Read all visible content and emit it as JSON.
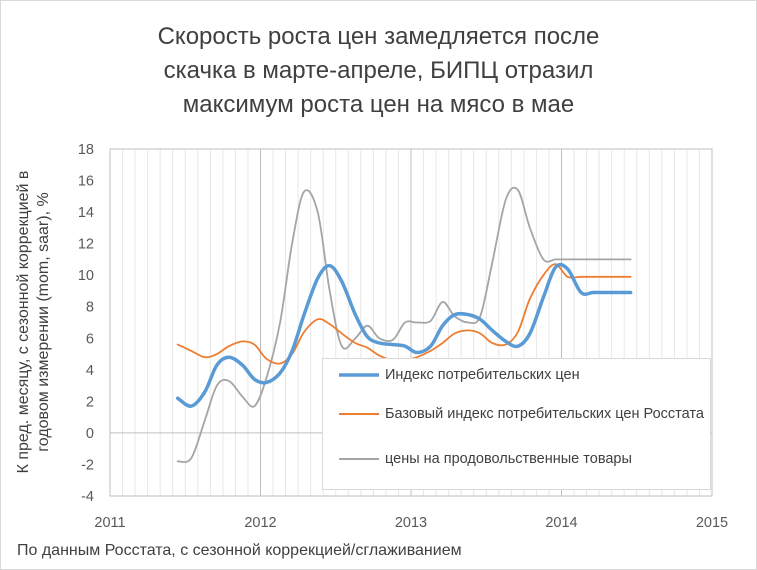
{
  "title_lines": [
    "Скорость роста цен замедляется после",
    "скачка в марте-апреле, БИПЦ отразил",
    "максимум роста цен на мясо в мае"
  ],
  "ylabel_lines": [
    "К пред. месяцу, с сезонной коррекцией в",
    "годовом измерении (mom, saar), %"
  ],
  "footnote": "По данным Росстата, с сезонной коррекцией/сглаживанием",
  "chart_data": {
    "type": "line",
    "title": "Скорость роста цен замедляется после скачка в марте-апреле, БИПЦ отразил максимум роста цен на мясо в мае",
    "xlabel": "",
    "ylabel": "К пред. месяцу, с сезонной коррекцией в годовом измерении (mom, saar), %",
    "xlim": [
      2011,
      2015
    ],
    "ylim": [
      -4,
      18
    ],
    "x_ticks": [
      "2011",
      "2012",
      "2013",
      "2014",
      "2015"
    ],
    "y_ticks": [
      "-4",
      "-2",
      "0",
      "2",
      "4",
      "6",
      "8",
      "10",
      "12",
      "14",
      "16",
      "18"
    ],
    "grid": "vertical gridlines",
    "legend": "bottom-right inside plot",
    "series": [
      {
        "name": "Индекс потребительских цен",
        "color": "#5b9bd5",
        "x": [
          2011.45,
          2011.54,
          2011.63,
          2011.71,
          2011.79,
          2011.88,
          2011.96,
          2012.04,
          2012.13,
          2012.21,
          2012.29,
          2012.38,
          2012.46,
          2012.54,
          2012.63,
          2012.71,
          2012.79,
          2012.88,
          2012.96,
          2013.04,
          2013.13,
          2013.21,
          2013.29,
          2013.38,
          2013.46,
          2013.54,
          2013.63,
          2013.71,
          2013.79,
          2013.88,
          2013.96,
          2014.04,
          2014.13,
          2014.21,
          2014.29,
          2014.38,
          2014.46
        ],
        "y": [
          2.2,
          1.7,
          2.6,
          4.3,
          4.8,
          4.3,
          3.4,
          3.2,
          3.8,
          5.2,
          7.5,
          9.8,
          10.6,
          9.6,
          7.5,
          6.1,
          5.7,
          5.6,
          5.5,
          5.1,
          5.5,
          6.8,
          7.5,
          7.5,
          7.2,
          6.5,
          5.8,
          5.5,
          6.3,
          8.6,
          10.5,
          10.4,
          8.9,
          8.9,
          8.9,
          8.9,
          8.9
        ]
      },
      {
        "name": "Базовый индекс потребительских цен Росстата",
        "color": "#ed7d31",
        "x": [
          2011.45,
          2011.54,
          2011.63,
          2011.71,
          2011.79,
          2011.88,
          2011.96,
          2012.04,
          2012.13,
          2012.21,
          2012.29,
          2012.38,
          2012.46,
          2012.54,
          2012.63,
          2012.71,
          2012.79,
          2012.88,
          2012.96,
          2013.04,
          2013.13,
          2013.21,
          2013.29,
          2013.38,
          2013.46,
          2013.54,
          2013.63,
          2013.71,
          2013.79,
          2013.88,
          2013.96,
          2014.04,
          2014.13,
          2014.21,
          2014.29,
          2014.38,
          2014.46
        ],
        "y": [
          5.6,
          5.2,
          4.8,
          5.0,
          5.5,
          5.8,
          5.6,
          4.7,
          4.4,
          5.0,
          6.4,
          7.2,
          6.9,
          6.3,
          5.7,
          5.4,
          4.9,
          4.6,
          4.6,
          4.8,
          5.2,
          5.7,
          6.3,
          6.5,
          6.3,
          5.7,
          5.6,
          6.4,
          8.5,
          10.0,
          10.7,
          9.9,
          9.9,
          9.9,
          9.9,
          9.9,
          9.9
        ]
      },
      {
        "name": "цены на продовольственные товары",
        "color": "#a5a5a5",
        "x": [
          2011.45,
          2011.54,
          2011.63,
          2011.71,
          2011.79,
          2011.88,
          2011.96,
          2012.04,
          2012.13,
          2012.21,
          2012.29,
          2012.38,
          2012.46,
          2012.54,
          2012.63,
          2012.71,
          2012.79,
          2012.88,
          2012.96,
          2013.04,
          2013.13,
          2013.21,
          2013.29,
          2013.38,
          2013.46,
          2013.54,
          2013.63,
          2013.71,
          2013.79,
          2013.88,
          2013.96,
          2014.04,
          2014.13,
          2014.21,
          2014.29,
          2014.38,
          2014.46
        ],
        "y": [
          -1.8,
          -1.6,
          0.8,
          3.0,
          3.3,
          2.3,
          1.7,
          3.5,
          7.0,
          12.0,
          15.3,
          14.0,
          9.0,
          5.5,
          6.0,
          6.8,
          6.0,
          5.9,
          7.0,
          7.0,
          7.1,
          8.3,
          7.4,
          7.0,
          7.4,
          10.8,
          14.8,
          15.4,
          13.0,
          11.0,
          11.0,
          11.0,
          11.0,
          11.0,
          11.0,
          11.0,
          11.0
        ]
      }
    ]
  }
}
